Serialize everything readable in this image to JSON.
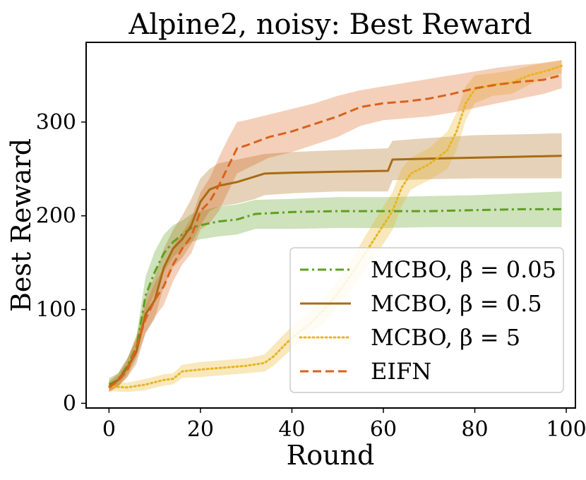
{
  "chart_data": {
    "type": "line",
    "title": "Alpine2, noisy: Best Reward",
    "xlabel": "Round",
    "ylabel": "Best Reward",
    "xlim": [
      -5,
      102
    ],
    "ylim": [
      -5,
      385
    ],
    "xticks": [
      0,
      20,
      40,
      60,
      80,
      100
    ],
    "xtick_labels": [
      "0",
      "20",
      "40",
      "60",
      "80",
      "100"
    ],
    "yticks": [
      0,
      100,
      200,
      300
    ],
    "ytick_labels": [
      "0",
      "100",
      "200",
      "300"
    ],
    "grid": false,
    "legend_position": "lower-right",
    "series": [
      {
        "name": "MCBO, β = 0.05",
        "color": "#5ea01e",
        "dash": "dashdot",
        "x": [
          0,
          2,
          4,
          6,
          8,
          10,
          12,
          14,
          16,
          18,
          20,
          24,
          28,
          32,
          40,
          50,
          60,
          70,
          80,
          90,
          99
        ],
        "mean": [
          20,
          25,
          40,
          60,
          115,
          140,
          160,
          172,
          180,
          187,
          190,
          194,
          196,
          202,
          204,
          205,
          205,
          205,
          206,
          207,
          207
        ],
        "upper": [
          27,
          32,
          48,
          72,
          135,
          162,
          180,
          190,
          195,
          202,
          205,
          210,
          212,
          217,
          218,
          220,
          220,
          221,
          222,
          224,
          226
        ],
        "lower": [
          14,
          18,
          32,
          50,
          95,
          118,
          140,
          156,
          165,
          172,
          175,
          178,
          180,
          186,
          186,
          187,
          187,
          188,
          188,
          188,
          188
        ]
      },
      {
        "name": "MCBO, β = 0.5",
        "color": "#a86b14",
        "dash": "solid",
        "x": [
          0,
          2,
          4,
          6,
          8,
          10,
          12,
          14,
          16,
          18,
          20,
          22,
          24,
          28,
          32,
          34,
          40,
          50,
          61,
          62,
          70,
          80,
          90,
          99
        ],
        "mean": [
          18,
          25,
          38,
          55,
          95,
          110,
          145,
          165,
          175,
          190,
          215,
          228,
          232,
          236,
          242,
          245,
          246,
          247,
          248,
          260,
          261,
          262,
          263,
          264
        ],
        "upper": [
          24,
          32,
          48,
          68,
          115,
          135,
          165,
          185,
          200,
          218,
          240,
          250,
          256,
          260,
          264,
          266,
          268,
          270,
          272,
          280,
          283,
          286,
          287,
          288
        ],
        "lower": [
          12,
          18,
          28,
          42,
          75,
          90,
          125,
          145,
          155,
          170,
          190,
          205,
          210,
          213,
          218,
          222,
          224,
          226,
          226,
          238,
          239,
          240,
          240,
          240
        ]
      },
      {
        "name": "MCBO, β = 5",
        "color": "#e8b422",
        "dash": "dotted",
        "x": [
          0,
          4,
          8,
          12,
          14,
          16,
          20,
          25,
          30,
          34,
          36,
          40,
          44,
          48,
          52,
          56,
          60,
          62,
          64,
          66,
          70,
          74,
          76,
          78,
          80,
          84,
          88,
          92,
          96,
          99
        ],
        "mean": [
          18,
          17,
          20,
          25,
          26,
          34,
          36,
          38,
          40,
          43,
          50,
          70,
          85,
          105,
          130,
          160,
          190,
          205,
          230,
          245,
          255,
          270,
          290,
          320,
          335,
          340,
          342,
          350,
          355,
          360
        ],
        "upper": [
          23,
          22,
          26,
          31,
          32,
          41,
          44,
          46,
          48,
          52,
          62,
          82,
          98,
          118,
          145,
          178,
          210,
          225,
          250,
          262,
          272,
          290,
          310,
          338,
          350,
          352,
          355,
          360,
          364,
          366
        ],
        "lower": [
          13,
          12,
          14,
          19,
          20,
          27,
          28,
          30,
          32,
          34,
          40,
          58,
          72,
          90,
          115,
          142,
          170,
          185,
          210,
          228,
          238,
          250,
          270,
          302,
          320,
          328,
          330,
          340,
          348,
          352
        ]
      },
      {
        "name": "EIFN",
        "color": "#d9621b",
        "dash": "dashed",
        "x": [
          0,
          2,
          4,
          6,
          8,
          10,
          12,
          14,
          16,
          18,
          20,
          22,
          24,
          26,
          28,
          30,
          35,
          40,
          45,
          50,
          55,
          60,
          65,
          70,
          75,
          80,
          85,
          90,
          95,
          99
        ],
        "mean": [
          17,
          24,
          35,
          60,
          90,
          110,
          125,
          148,
          165,
          178,
          205,
          215,
          232,
          252,
          272,
          275,
          284,
          290,
          298,
          306,
          316,
          320,
          322,
          325,
          330,
          336,
          340,
          343,
          345,
          350
        ],
        "upper": [
          22,
          30,
          45,
          72,
          105,
          128,
          145,
          168,
          182,
          198,
          225,
          240,
          262,
          282,
          300,
          302,
          308,
          314,
          320,
          328,
          334,
          338,
          342,
          346,
          350,
          354,
          358,
          361,
          363,
          366
        ],
        "lower": [
          12,
          18,
          28,
          48,
          75,
          92,
          105,
          130,
          148,
          160,
          185,
          192,
          205,
          225,
          245,
          250,
          262,
          268,
          276,
          284,
          296,
          302,
          304,
          306,
          310,
          315,
          320,
          325,
          330,
          336
        ]
      }
    ]
  }
}
